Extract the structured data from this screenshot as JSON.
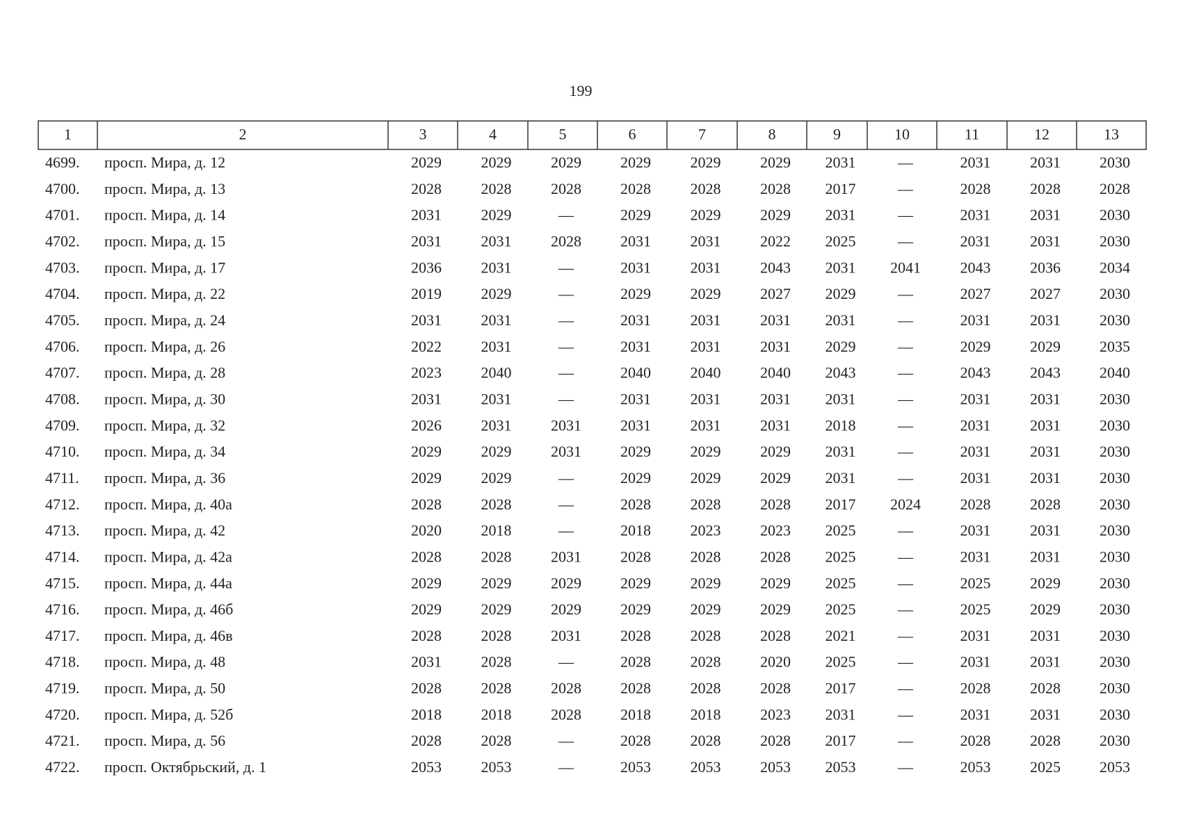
{
  "page_number": "199",
  "table": {
    "header": [
      "1",
      "2",
      "3",
      "4",
      "5",
      "6",
      "7",
      "8",
      "9",
      "10",
      "11",
      "12",
      "13"
    ],
    "rows": [
      [
        "4699.",
        "просп. Мира, д. 12",
        "2029",
        "2029",
        "2029",
        "2029",
        "2029",
        "2029",
        "2031",
        "—",
        "2031",
        "2031",
        "2030"
      ],
      [
        "4700.",
        "просп. Мира, д. 13",
        "2028",
        "2028",
        "2028",
        "2028",
        "2028",
        "2028",
        "2017",
        "—",
        "2028",
        "2028",
        "2028"
      ],
      [
        "4701.",
        "просп. Мира, д. 14",
        "2031",
        "2029",
        "—",
        "2029",
        "2029",
        "2029",
        "2031",
        "—",
        "2031",
        "2031",
        "2030"
      ],
      [
        "4702.",
        "просп. Мира, д. 15",
        "2031",
        "2031",
        "2028",
        "2031",
        "2031",
        "2022",
        "2025",
        "—",
        "2031",
        "2031",
        "2030"
      ],
      [
        "4703.",
        "просп. Мира, д. 17",
        "2036",
        "2031",
        "—",
        "2031",
        "2031",
        "2043",
        "2031",
        "2041",
        "2043",
        "2036",
        "2034"
      ],
      [
        "4704.",
        "просп. Мира, д. 22",
        "2019",
        "2029",
        "—",
        "2029",
        "2029",
        "2027",
        "2029",
        "—",
        "2027",
        "2027",
        "2030"
      ],
      [
        "4705.",
        "просп. Мира, д. 24",
        "2031",
        "2031",
        "—",
        "2031",
        "2031",
        "2031",
        "2031",
        "—",
        "2031",
        "2031",
        "2030"
      ],
      [
        "4706.",
        "просп. Мира, д. 26",
        "2022",
        "2031",
        "—",
        "2031",
        "2031",
        "2031",
        "2029",
        "—",
        "2029",
        "2029",
        "2035"
      ],
      [
        "4707.",
        "просп. Мира, д. 28",
        "2023",
        "2040",
        "—",
        "2040",
        "2040",
        "2040",
        "2043",
        "—",
        "2043",
        "2043",
        "2040"
      ],
      [
        "4708.",
        "просп. Мира, д. 30",
        "2031",
        "2031",
        "—",
        "2031",
        "2031",
        "2031",
        "2031",
        "—",
        "2031",
        "2031",
        "2030"
      ],
      [
        "4709.",
        "просп. Мира, д. 32",
        "2026",
        "2031",
        "2031",
        "2031",
        "2031",
        "2031",
        "2018",
        "—",
        "2031",
        "2031",
        "2030"
      ],
      [
        "4710.",
        "просп. Мира, д. 34",
        "2029",
        "2029",
        "2031",
        "2029",
        "2029",
        "2029",
        "2031",
        "—",
        "2031",
        "2031",
        "2030"
      ],
      [
        "4711.",
        "просп. Мира, д. 36",
        "2029",
        "2029",
        "—",
        "2029",
        "2029",
        "2029",
        "2031",
        "—",
        "2031",
        "2031",
        "2030"
      ],
      [
        "4712.",
        "просп. Мира, д. 40а",
        "2028",
        "2028",
        "—",
        "2028",
        "2028",
        "2028",
        "2017",
        "2024",
        "2028",
        "2028",
        "2030"
      ],
      [
        "4713.",
        "просп. Мира, д. 42",
        "2020",
        "2018",
        "—",
        "2018",
        "2023",
        "2023",
        "2025",
        "—",
        "2031",
        "2031",
        "2030"
      ],
      [
        "4714.",
        "просп. Мира, д. 42а",
        "2028",
        "2028",
        "2031",
        "2028",
        "2028",
        "2028",
        "2025",
        "—",
        "2031",
        "2031",
        "2030"
      ],
      [
        "4715.",
        "просп. Мира, д. 44а",
        "2029",
        "2029",
        "2029",
        "2029",
        "2029",
        "2029",
        "2025",
        "—",
        "2025",
        "2029",
        "2030"
      ],
      [
        "4716.",
        "просп. Мира, д. 46б",
        "2029",
        "2029",
        "2029",
        "2029",
        "2029",
        "2029",
        "2025",
        "—",
        "2025",
        "2029",
        "2030"
      ],
      [
        "4717.",
        "просп. Мира, д. 46в",
        "2028",
        "2028",
        "2031",
        "2028",
        "2028",
        "2028",
        "2021",
        "—",
        "2031",
        "2031",
        "2030"
      ],
      [
        "4718.",
        "просп. Мира, д. 48",
        "2031",
        "2028",
        "—",
        "2028",
        "2028",
        "2020",
        "2025",
        "—",
        "2031",
        "2031",
        "2030"
      ],
      [
        "4719.",
        "просп. Мира, д. 50",
        "2028",
        "2028",
        "2028",
        "2028",
        "2028",
        "2028",
        "2017",
        "—",
        "2028",
        "2028",
        "2030"
      ],
      [
        "4720.",
        "просп. Мира, д. 52б",
        "2018",
        "2018",
        "2028",
        "2018",
        "2018",
        "2023",
        "2031",
        "—",
        "2031",
        "2031",
        "2030"
      ],
      [
        "4721.",
        "просп. Мира, д. 56",
        "2028",
        "2028",
        "—",
        "2028",
        "2028",
        "2028",
        "2017",
        "—",
        "2028",
        "2028",
        "2030"
      ],
      [
        "4722.",
        "просп. Октябрьский, д. 1",
        "2053",
        "2053",
        "—",
        "2053",
        "2053",
        "2053",
        "2053",
        "—",
        "2053",
        "2025",
        "2053"
      ]
    ]
  }
}
